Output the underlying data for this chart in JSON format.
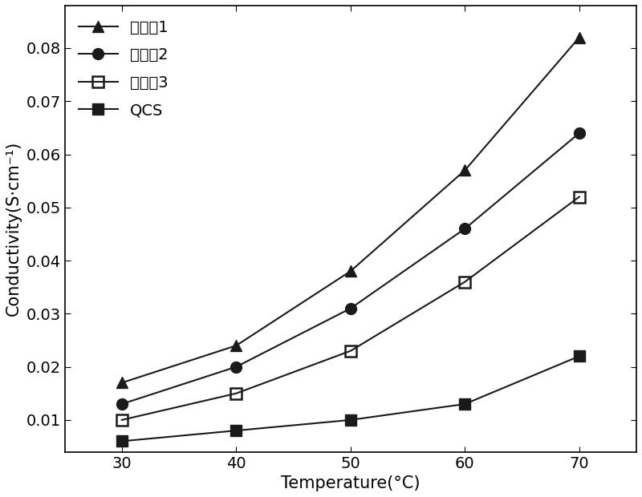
{
  "x": [
    30,
    40,
    50,
    60,
    70
  ],
  "series": [
    {
      "label": "实施入1",
      "values": [
        0.017,
        0.024,
        0.038,
        0.057,
        0.082
      ],
      "marker": "^",
      "fillstyle": "full",
      "color": "#1a1a1a"
    },
    {
      "label": "实施入2",
      "values": [
        0.013,
        0.02,
        0.031,
        0.046,
        0.064
      ],
      "marker": "o",
      "fillstyle": "full",
      "color": "#1a1a1a"
    },
    {
      "label": "实施入3",
      "values": [
        0.01,
        0.015,
        0.023,
        0.036,
        0.052
      ],
      "marker": "s",
      "fillstyle": "none",
      "color": "#1a1a1a"
    },
    {
      "label": "QCS",
      "values": [
        0.006,
        0.008,
        0.01,
        0.013,
        0.022
      ],
      "marker": "s",
      "fillstyle": "full",
      "color": "#1a1a1a"
    }
  ],
  "xlabel": "Temperature(°C)",
  "ylabel": "Conductivity(S·cm⁻¹)",
  "xlim": [
    25,
    75
  ],
  "ylim": [
    0.004,
    0.088
  ],
  "xticks": [
    30,
    40,
    50,
    60,
    70
  ],
  "yticks": [
    0.01,
    0.02,
    0.03,
    0.04,
    0.05,
    0.06,
    0.07,
    0.08
  ],
  "legend_fontsize": 14,
  "axis_fontsize": 15,
  "tick_fontsize": 14,
  "marker_size": 10,
  "line_width": 1.5,
  "background_color": "#ffffff"
}
